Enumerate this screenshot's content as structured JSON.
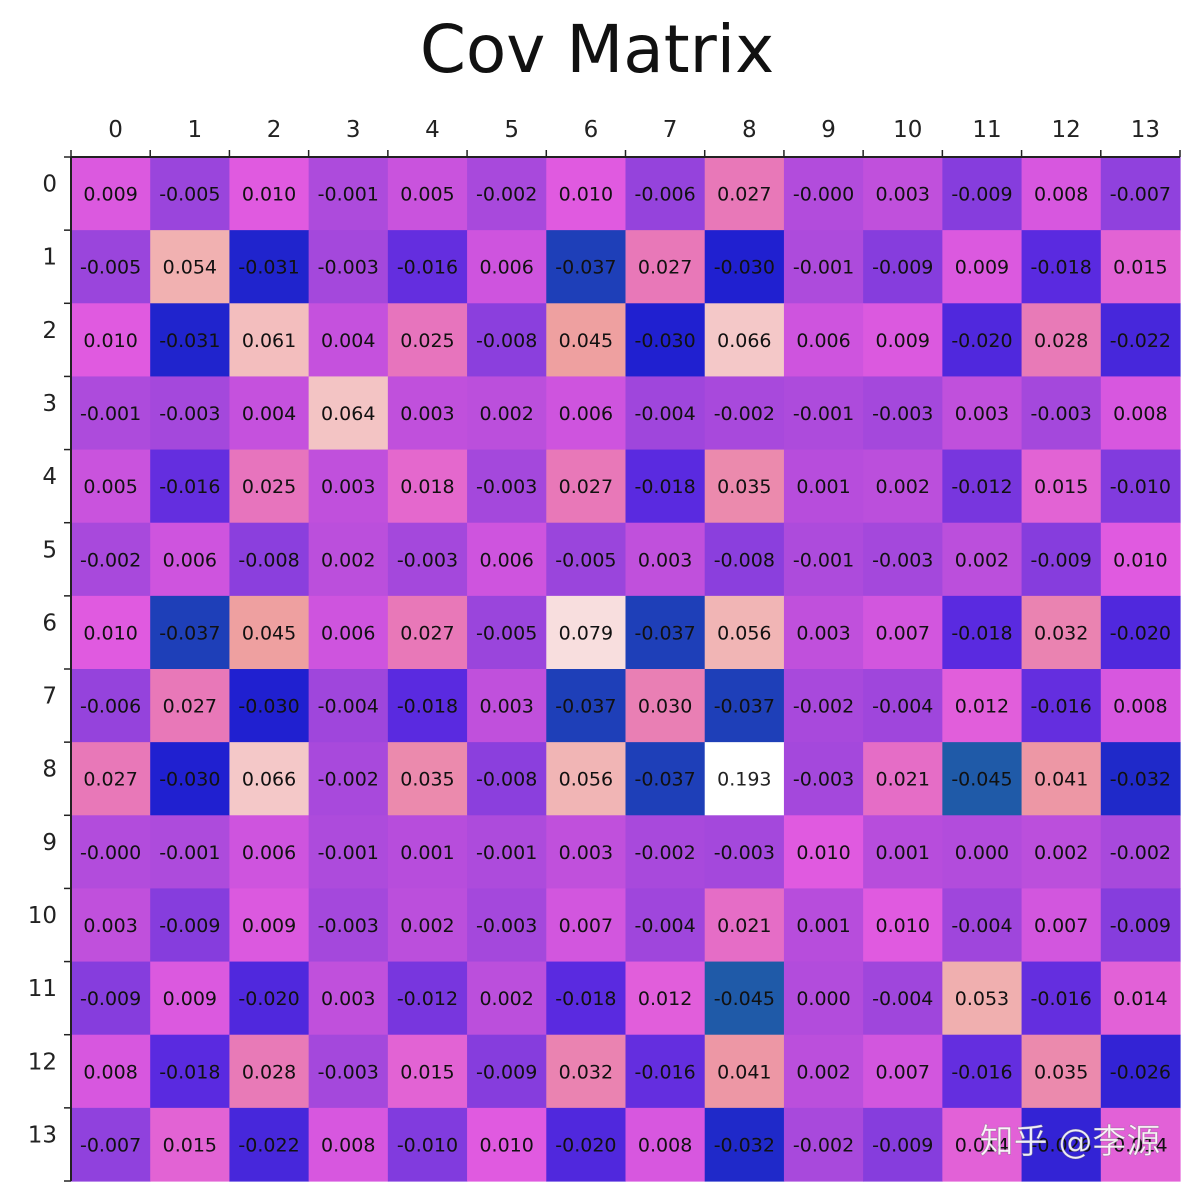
{
  "chart_data": {
    "type": "heatmap",
    "title": "Cov Matrix",
    "xlabel": "",
    "ylabel": "",
    "x_tick_labels": [
      "0",
      "1",
      "2",
      "3",
      "4",
      "5",
      "6",
      "7",
      "8",
      "9",
      "10",
      "11",
      "12",
      "13"
    ],
    "y_tick_labels": [
      "0",
      "1",
      "2",
      "3",
      "4",
      "5",
      "6",
      "7",
      "8",
      "9",
      "10",
      "11",
      "12",
      "13"
    ],
    "x_axis_position": "top",
    "grid": false,
    "legend": "none",
    "color_scale": {
      "name": "magenta-blue-to-white",
      "vmin": -0.045,
      "vmax": 0.193,
      "stops": [
        {
          "value": -0.045,
          "color": "#1f5aa8"
        },
        {
          "value": -0.037,
          "color": "#1e3fb8"
        },
        {
          "value": -0.03,
          "color": "#2020d0"
        },
        {
          "value": -0.018,
          "color": "#5a2ae0"
        },
        {
          "value": -0.005,
          "color": "#9a45dc"
        },
        {
          "value": 0.003,
          "color": "#c050dc"
        },
        {
          "value": 0.01,
          "color": "#e05ae0"
        },
        {
          "value": 0.027,
          "color": "#e878b8"
        },
        {
          "value": 0.045,
          "color": "#eea0a0"
        },
        {
          "value": 0.066,
          "color": "#f4c8c8"
        },
        {
          "value": 0.08,
          "color": "#f8e0e0"
        },
        {
          "value": 0.193,
          "color": "#ffffff"
        }
      ]
    },
    "values": [
      [
        "0.009",
        "-0.005",
        "0.010",
        "-0.001",
        "0.005",
        "-0.002",
        "0.010",
        "-0.006",
        "0.027",
        "-0.000",
        "0.003",
        "-0.009",
        "0.008",
        "-0.007"
      ],
      [
        "-0.005",
        "0.054",
        "-0.031",
        "-0.003",
        "-0.016",
        "0.006",
        "-0.037",
        "0.027",
        "-0.030",
        "-0.001",
        "-0.009",
        "0.009",
        "-0.018",
        "0.015"
      ],
      [
        "0.010",
        "-0.031",
        "0.061",
        "0.004",
        "0.025",
        "-0.008",
        "0.045",
        "-0.030",
        "0.066",
        "0.006",
        "0.009",
        "-0.020",
        "0.028",
        "-0.022"
      ],
      [
        "-0.001",
        "-0.003",
        "0.004",
        "0.064",
        "0.003",
        "0.002",
        "0.006",
        "-0.004",
        "-0.002",
        "-0.001",
        "-0.003",
        "0.003",
        "-0.003",
        "0.008"
      ],
      [
        "0.005",
        "-0.016",
        "0.025",
        "0.003",
        "0.018",
        "-0.003",
        "0.027",
        "-0.018",
        "0.035",
        "0.001",
        "0.002",
        "-0.012",
        "0.015",
        "-0.010"
      ],
      [
        "-0.002",
        "0.006",
        "-0.008",
        "0.002",
        "-0.003",
        "0.006",
        "-0.005",
        "0.003",
        "-0.008",
        "-0.001",
        "-0.003",
        "0.002",
        "-0.009",
        "0.010"
      ],
      [
        "0.010",
        "-0.037",
        "0.045",
        "0.006",
        "0.027",
        "-0.005",
        "0.079",
        "-0.037",
        "0.056",
        "0.003",
        "0.007",
        "-0.018",
        "0.032",
        "-0.020"
      ],
      [
        "-0.006",
        "0.027",
        "-0.030",
        "-0.004",
        "-0.018",
        "0.003",
        "-0.037",
        "0.030",
        "-0.037",
        "-0.002",
        "-0.004",
        "0.012",
        "-0.016",
        "0.008"
      ],
      [
        "0.027",
        "-0.030",
        "0.066",
        "-0.002",
        "0.035",
        "-0.008",
        "0.056",
        "-0.037",
        "0.193",
        "-0.003",
        "0.021",
        "-0.045",
        "0.041",
        "-0.032"
      ],
      [
        "-0.000",
        "-0.001",
        "0.006",
        "-0.001",
        "0.001",
        "-0.001",
        "0.003",
        "-0.002",
        "-0.003",
        "0.010",
        "0.001",
        "0.000",
        "0.002",
        "-0.002"
      ],
      [
        "0.003",
        "-0.009",
        "0.009",
        "-0.003",
        "0.002",
        "-0.003",
        "0.007",
        "-0.004",
        "0.021",
        "0.001",
        "0.010",
        "-0.004",
        "0.007",
        "-0.009"
      ],
      [
        "-0.009",
        "0.009",
        "-0.020",
        "0.003",
        "-0.012",
        "0.002",
        "-0.018",
        "0.012",
        "-0.045",
        "0.000",
        "-0.004",
        "0.053",
        "-0.016",
        "0.014"
      ],
      [
        "0.008",
        "-0.018",
        "0.028",
        "-0.003",
        "0.015",
        "-0.009",
        "0.032",
        "-0.016",
        "0.041",
        "0.002",
        "0.007",
        "-0.016",
        "0.035",
        "-0.026"
      ],
      [
        "-0.007",
        "0.015",
        "-0.022",
        "0.008",
        "-0.010",
        "0.010",
        "-0.020",
        "0.008",
        "-0.032",
        "-0.002",
        "-0.009",
        "0.014",
        "-0.026",
        "0.014"
      ]
    ]
  },
  "watermark": {
    "text": "知乎 @李源"
  }
}
